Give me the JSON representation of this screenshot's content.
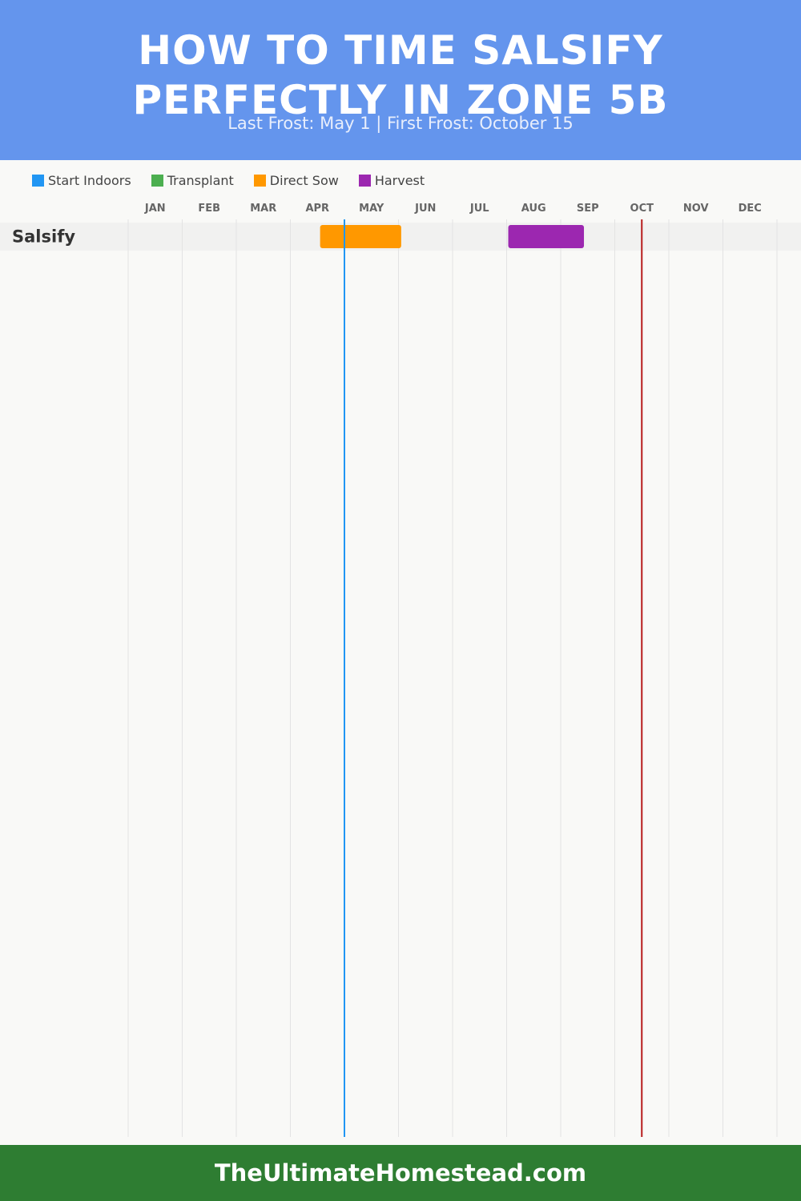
{
  "header": {
    "title_line1": "HOW TO TIME SALSIFY",
    "title_line2": "PERFECTLY IN ZONE 5B",
    "subtitle": "Last Frost: May 1 | First Frost: October 15",
    "background_color": "#6495ed"
  },
  "legend": [
    {
      "label": "Start Indoors",
      "color": "#2196f3"
    },
    {
      "label": "Transplant",
      "color": "#4caf50"
    },
    {
      "label": "Direct Sow",
      "color": "#ff9800"
    },
    {
      "label": "Harvest",
      "color": "#9c27b0"
    }
  ],
  "chart_data": {
    "type": "gantt",
    "months": [
      "JAN",
      "FEB",
      "MAR",
      "APR",
      "MAY",
      "JUN",
      "JUL",
      "AUG",
      "SEP",
      "OCT",
      "NOV",
      "DEC"
    ],
    "rows": [
      {
        "crop": "Salsify",
        "phases": [
          {
            "phase": "Direct Sow",
            "start": "Apr 15",
            "end": "May 31",
            "start_month": 3.55,
            "end_month": 5.05,
            "color": "#ff9800"
          },
          {
            "phase": "Harvest",
            "start": "Aug 1",
            "end": "Sep 15",
            "start_month": 7.03,
            "end_month": 8.43,
            "color": "#9c27b0"
          }
        ]
      }
    ],
    "markers": [
      {
        "event": "Last Frost",
        "date": "May 1",
        "month_position": 4.0,
        "color": "#2196f3"
      },
      {
        "event": "First Frost",
        "date": "October 15",
        "month_position": 9.5,
        "color": "#b71c1c"
      }
    ]
  },
  "footer": {
    "text": "TheUltimateHomestead.com",
    "background_color": "#2e7d32"
  }
}
